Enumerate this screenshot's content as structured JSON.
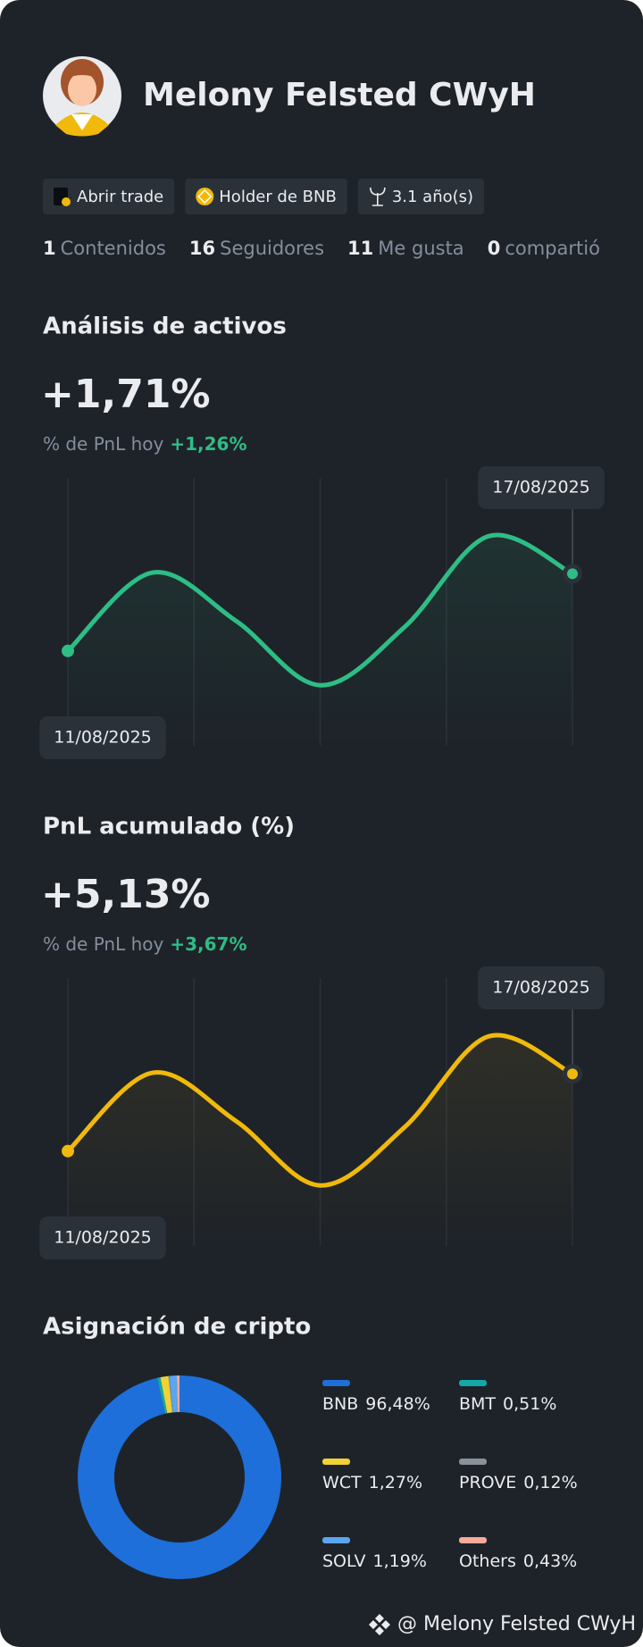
{
  "profile": {
    "name": "Melony Felsted CWyH",
    "badges": [
      "Abrir trade",
      "Holder de BNB",
      "3.1 año(s)"
    ],
    "stats": [
      {
        "value": 1,
        "label": "Contenidos"
      },
      {
        "value": 16,
        "label": "Seguidores"
      },
      {
        "value": 11,
        "label": "Me gusta"
      },
      {
        "value": 0,
        "label": "compartió"
      }
    ]
  },
  "chart_data": [
    {
      "type": "line",
      "title": "Análisis de activos",
      "headline": "+1,71%",
      "subtitle": "% de PnL hoy",
      "change": "+1,26%",
      "categories": [
        "11/08/2025",
        null,
        null,
        null,
        null,
        null,
        "17/08/2025"
      ],
      "values": [
        0.27,
        1.73,
        0.83,
        -0.37,
        0.71,
        2.41,
        1.71
      ],
      "color": "#2ebd85",
      "ylim": [
        -1.5,
        3.5
      ]
    },
    {
      "type": "line",
      "title": "PnL acumulado (%)",
      "headline": "+5,13%",
      "subtitle": "% de PnL hoy",
      "change": "+3,67%",
      "categories": [
        "11/08/2025",
        null,
        null,
        null,
        null,
        null,
        "17/08/2025"
      ],
      "values": [
        0.81,
        5.19,
        2.49,
        -1.11,
        2.13,
        7.23,
        5.13
      ],
      "color": "#f0b90b",
      "ylim": [
        -4.5,
        10.5
      ]
    },
    {
      "type": "donut",
      "title": "Asignación de cripto",
      "categories": [
        "BNB",
        "BMT",
        "WCT",
        "PROVE",
        "SOLV",
        "Others"
      ],
      "values": [
        96.48,
        0.51,
        1.27,
        0.12,
        1.19,
        0.43
      ],
      "value_labels": [
        "96,48%",
        "0,51%",
        "1,27%",
        "0,12%",
        "1,19%",
        "0,43%"
      ],
      "colors": [
        "#1e6fd9",
        "#13a8a8",
        "#f0d236",
        "#8b919a",
        "#5aa6f0",
        "#f9a89a"
      ]
    }
  ],
  "footer": "@ Melony Felsted CWyH"
}
